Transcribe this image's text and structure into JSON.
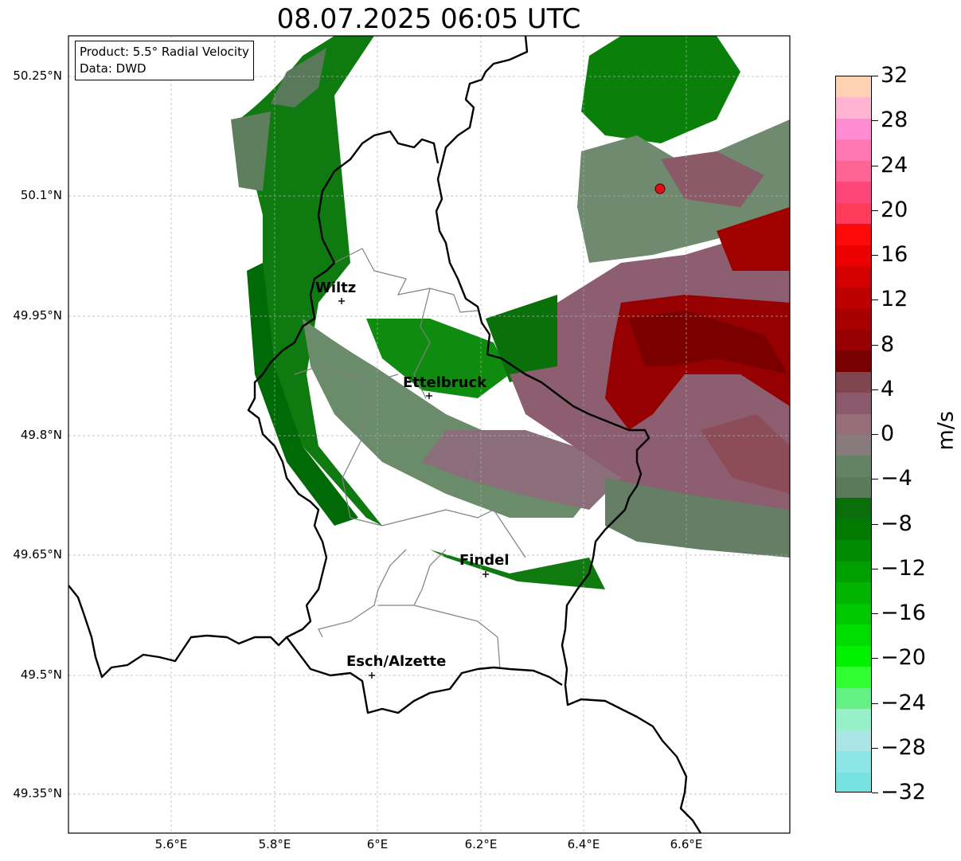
{
  "title": "08.07.2025 06:05 UTC",
  "info_box": {
    "product": "Product: 5.5° Radial Velocity",
    "source": "Data: DWD"
  },
  "lat_labels": [
    "50.25°N",
    "50.1°N",
    "49.95°N",
    "49.8°N",
    "49.65°N",
    "49.5°N",
    "49.35°N"
  ],
  "lon_labels": [
    "5.6°E",
    "5.8°E",
    "6°E",
    "6.2°E",
    "6.4°E",
    "6.6°E"
  ],
  "cities": [
    {
      "name": "Wiltz"
    },
    {
      "name": "Ettelbruck"
    },
    {
      "name": "Findel"
    },
    {
      "name": "Esch/Alzette"
    }
  ],
  "colorbar": {
    "unit": "m/s",
    "tick_labels": [
      "32",
      "28",
      "24",
      "20",
      "16",
      "12",
      "8",
      "4",
      "0",
      "−4",
      "−8",
      "−12",
      "−16",
      "−20",
      "−24",
      "−28",
      "−32"
    ],
    "colors_top_to_bottom": [
      "#ffd2b4",
      "#ffb4d2",
      "#ff8cd2",
      "#ff78b4",
      "#ff6496",
      "#ff4678",
      "#ff3c5a",
      "#ff0a0a",
      "#ec0000",
      "#d20000",
      "#bc0000",
      "#a80000",
      "#960000",
      "#780000",
      "#804650",
      "#8c5a6e",
      "#966e7a",
      "#877b7b",
      "#648264",
      "#5a7a5a",
      "#0a6e0a",
      "#007a00",
      "#008c00",
      "#00a000",
      "#00b400",
      "#00c800",
      "#00dc00",
      "#00f000",
      "#32ff32",
      "#64f082",
      "#96f0c8",
      "#aae6e6",
      "#8ce6e6",
      "#78e1e1"
    ]
  },
  "radar_site": {
    "color": "#e01010"
  }
}
